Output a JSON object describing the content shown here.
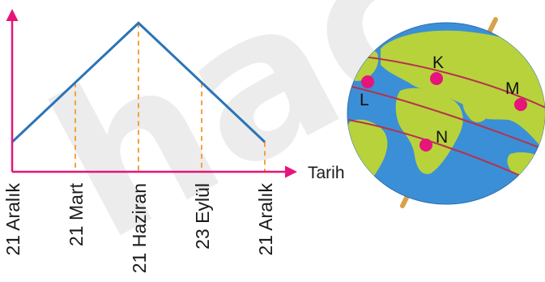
{
  "chart_data": {
    "type": "line",
    "categories": [
      "21 Aralık",
      "21 Mart",
      "21 Haziran",
      "23 Eylül",
      "21 Aralık"
    ],
    "values": [
      1,
      3,
      5,
      3,
      1
    ],
    "xlabel": "Tarih",
    "ylabel": "",
    "ylim": [
      0,
      5.5
    ],
    "grid": false,
    "colors": {
      "line": "#2a74b8",
      "axes": "#e6157a",
      "guides": "#f5a13a"
    }
  },
  "globe": {
    "points": [
      {
        "label": "K"
      },
      {
        "label": "L"
      },
      {
        "label": "M"
      },
      {
        "label": "N"
      }
    ],
    "colors": {
      "ocean": "#3b8fd6",
      "land": "#b8d23c",
      "markers": "#e6157a",
      "circles": "#b5334e",
      "axis": "#d8a24a"
    }
  },
  "watermark": {
    "text": "hac"
  }
}
